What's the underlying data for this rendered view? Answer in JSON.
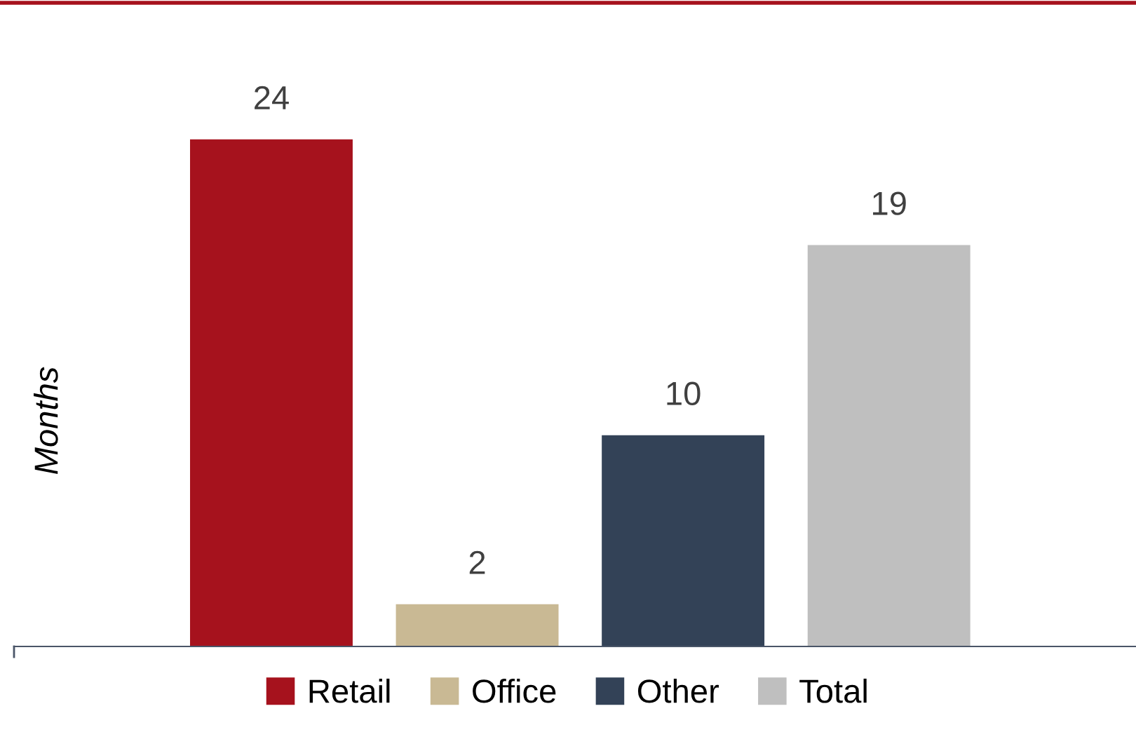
{
  "chart_data": {
    "type": "bar",
    "ylabel": "Months",
    "categories": [
      null
    ],
    "series": [
      {
        "name": "Retail",
        "color": "#a6121d",
        "values": [
          24
        ]
      },
      {
        "name": "Office",
        "color": "#c9b994",
        "values": [
          2
        ]
      },
      {
        "name": "Other",
        "color": "#334257",
        "values": [
          10
        ]
      },
      {
        "name": "Total",
        "color": "#bfbfbf",
        "values": [
          19
        ]
      }
    ],
    "ylim": [
      0,
      30.6
    ],
    "data_labels": true,
    "legend": "bottom"
  }
}
